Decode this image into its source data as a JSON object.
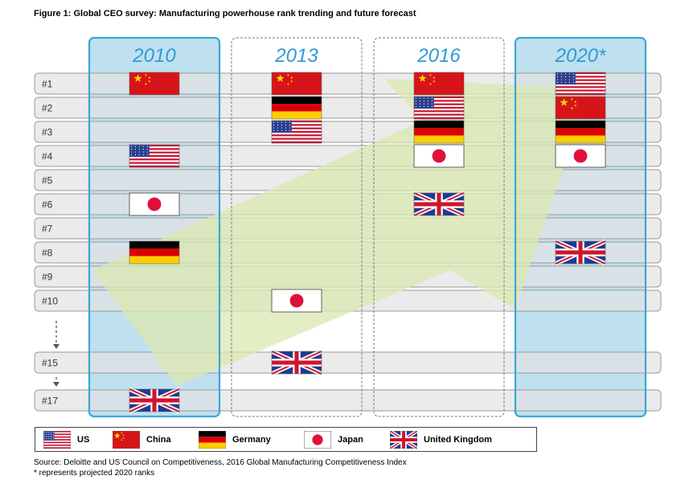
{
  "title": "Figure 1: Global CEO survey: Manufacturing powerhouse rank trending and future forecast",
  "chart_data": {
    "type": "table",
    "columns": [
      "2010",
      "2013",
      "2016",
      "2020*"
    ],
    "rank_labels": [
      "#1",
      "#2",
      "#3",
      "#4",
      "#5",
      "#6",
      "#7",
      "#8",
      "#9",
      "#10",
      "#15",
      "#17"
    ],
    "rankings": [
      {
        "column": "2010",
        "ranks": {
          "china": 1,
          "us": 4,
          "japan": 6,
          "germany": 8,
          "uk": 17
        }
      },
      {
        "column": "2013",
        "ranks": {
          "china": 1,
          "germany": 2,
          "us": 3,
          "japan": 10,
          "uk": 15
        }
      },
      {
        "column": "2016",
        "ranks": {
          "china": 1,
          "us": 2,
          "germany": 3,
          "japan": 4,
          "uk": 6
        }
      },
      {
        "column": "2020*",
        "ranks": {
          "us": 1,
          "china": 2,
          "germany": 3,
          "japan": 4,
          "uk": 8
        }
      }
    ]
  },
  "legend": [
    {
      "key": "us",
      "label": "US"
    },
    {
      "key": "china",
      "label": "China"
    },
    {
      "key": "germany",
      "label": "Germany"
    },
    {
      "key": "japan",
      "label": "Japan"
    },
    {
      "key": "uk",
      "label": "United Kingdom"
    }
  ],
  "colors": {
    "highlight_border": "#3aa6d8",
    "highlight_fill": "#bfe0ee",
    "row_fill": "#e3e3e3",
    "row_border": "#9a9a9a",
    "year_text": "#2e9bd4",
    "arrow_fill": "#dbe8b0"
  },
  "source": "Source: Deloitte and US Council on Competitiveness, 2016 Global Manufacturing Competitiveness Index",
  "note": "* represents projected 2020 ranks"
}
